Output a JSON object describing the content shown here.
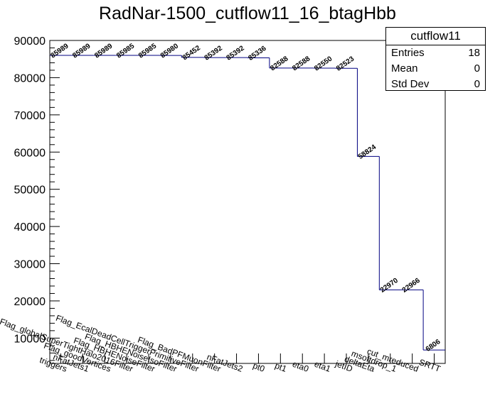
{
  "chart_data": {
    "type": "histogram",
    "title": "RadNar-1500_cutflow11_16_btagHbb",
    "categories": [
      "triggers",
      "nFatJets1",
      "Flag_goodVertices",
      "Flag_globalSuperTightHalo2016Filter",
      "Flag_HBHENoiseFilter",
      "Flag_HBHENoiseIsoFilter",
      "Flag_EcalDeadCellTriggerPrimitiveFilter",
      "Flag_BadPFMuonFilter",
      "nFatJets2",
      "pt0",
      "pt1",
      "eta0",
      "eta1",
      "jetID",
      "deltaEta",
      "msoftdrop_1",
      "cut_mreduced",
      "SRTT"
    ],
    "values": [
      85989,
      85989,
      85989,
      85985,
      85985,
      85980,
      85452,
      85392,
      85392,
      85336,
      82588,
      82588,
      82550,
      82523,
      58824,
      22970,
      22966,
      6806
    ],
    "yticks": [
      "10000",
      "20000",
      "30000",
      "40000",
      "50000",
      "60000",
      "70000",
      "80000",
      "90000"
    ],
    "ylim": [
      3200,
      90000
    ],
    "line_color": "#000080"
  },
  "stats": {
    "name": "cutflow11",
    "entries_label": "Entries",
    "entries": "18",
    "mean_label": "Mean",
    "mean": "0",
    "stddev_label": "Std Dev",
    "stddev": "0"
  }
}
